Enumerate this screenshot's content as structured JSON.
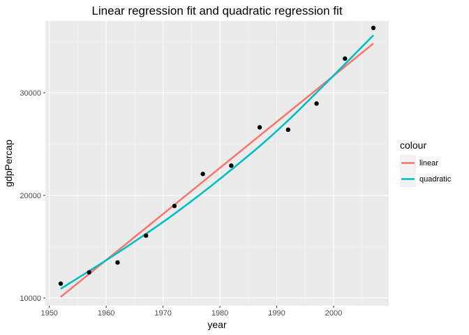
{
  "chart_data": {
    "type": "scatter",
    "title": "Linear regression fit and quadratic regression fit",
    "xlabel": "year",
    "ylabel": "gdpPercap",
    "xlim": [
      1949.3,
      2009.7
    ],
    "ylim": [
      9250,
      37000
    ],
    "x_ticks": [
      1950,
      1960,
      1970,
      1980,
      1990,
      2000
    ],
    "x_tick_labels": [
      "1950",
      "1960",
      "1970",
      "1980",
      "1990",
      "2000"
    ],
    "y_ticks": [
      10000,
      20000,
      30000
    ],
    "y_tick_labels": [
      "10000",
      "20000",
      "30000"
    ],
    "grid": true,
    "legend": {
      "title": "colour",
      "position": "right",
      "entries": [
        {
          "label": "linear",
          "color": "#F8766D"
        },
        {
          "label": "quadratic",
          "color": "#00BFC4"
        }
      ]
    },
    "points": {
      "color": "#000000",
      "x": [
        1952,
        1957,
        1962,
        1967,
        1972,
        1977,
        1982,
        1987,
        1992,
        1997,
        2002,
        2007
      ],
      "y": [
        11400,
        12500,
        13460,
        16080,
        18970,
        22090,
        22900,
        26630,
        26400,
        28950,
        33330,
        36320
      ]
    },
    "series": [
      {
        "name": "linear",
        "color": "#F8766D",
        "x": [
          1952,
          2007
        ],
        "y": [
          10100,
          34800
        ]
      },
      {
        "name": "quadratic",
        "color": "#00BFC4",
        "x": [
          1952,
          1962,
          1972,
          1982,
          1992,
          2007
        ],
        "y": [
          10900,
          14400,
          18200,
          22500,
          27300,
          35600
        ]
      }
    ]
  }
}
